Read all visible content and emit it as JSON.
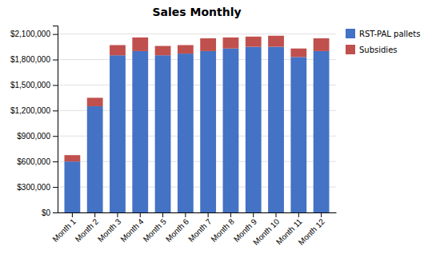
{
  "chart_data": {
    "type": "bar",
    "title": "Sales Monthly",
    "stacked": true,
    "grid": true,
    "legend": "right",
    "categories": [
      "Month 1",
      "Month 2",
      "Month 3",
      "Month 4",
      "Month 5",
      "Month 6",
      "Month 7",
      "Month 8",
      "Month 9",
      "Month 10",
      "Month 11",
      "Month 12"
    ],
    "series": [
      {
        "name": "RST-PAL pallets",
        "color": "#4472C4",
        "values": [
          600000,
          1250000,
          1850000,
          1900000,
          1850000,
          1870000,
          1900000,
          1930000,
          1950000,
          1950000,
          1830000,
          1900000
        ]
      },
      {
        "name": "Subsidies",
        "color": "#C0504D",
        "values": [
          75000,
          100000,
          120000,
          160000,
          110000,
          100000,
          150000,
          130000,
          120000,
          130000,
          100000,
          150000
        ]
      }
    ],
    "ylim": [
      0,
      2200000
    ],
    "yticks": [
      {
        "value": 0,
        "label": "$0"
      },
      {
        "value": 300000,
        "label": "$300,000"
      },
      {
        "value": 600000,
        "label": "$600,000"
      },
      {
        "value": 900000,
        "label": "$900,000"
      },
      {
        "value": 1200000,
        "label": "$1,200,000"
      },
      {
        "value": 1500000,
        "label": "$1,500,000"
      },
      {
        "value": 1800000,
        "label": "$1,800,000"
      },
      {
        "value": 2100000,
        "label": "$2,100,000"
      }
    ]
  }
}
